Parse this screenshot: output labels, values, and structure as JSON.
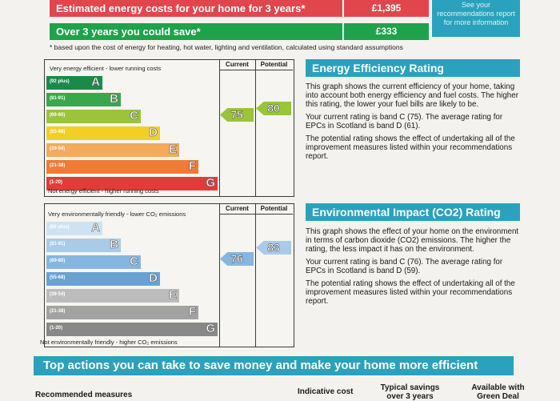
{
  "costs": {
    "row1_label": "Estimated energy costs for your home for 3 years*",
    "row1_value": "£1,395",
    "row2_label": "Over 3 years you could save*",
    "row2_value": "£333",
    "side_note": "See your recommendations report for more information",
    "footnote": "* based upon the cost of energy for heating, hot water, lighting and ventilation, calculated using standard assumptions"
  },
  "energy": {
    "top_label": "Very energy efficient - lower running costs",
    "bottom_label": "Not energy efficient - higher running costs",
    "col_current": "Current",
    "col_potential": "Potential",
    "current": "75",
    "potential": "80",
    "bands": [
      {
        "range": "(92 plus)",
        "letter": "A",
        "color": "#1a8a4a"
      },
      {
        "range": "(81-91)",
        "letter": "B",
        "color": "#3aa84a"
      },
      {
        "range": "(69-80)",
        "letter": "C",
        "color": "#9ac43a"
      },
      {
        "range": "(55-68)",
        "letter": "D",
        "color": "#f2cf22"
      },
      {
        "range": "(39-54)",
        "letter": "E",
        "color": "#f3aa5a"
      },
      {
        "range": "(21-38)",
        "letter": "F",
        "color": "#ee7b36"
      },
      {
        "range": "(1-20)",
        "letter": "G",
        "color": "#e23b3b"
      }
    ]
  },
  "environment": {
    "top_label": "Very environmentally friendly - lower CO₂ emissions",
    "bottom_label": "Not environmentally friendly - higher CO₂ emissions",
    "col_current": "Current",
    "col_potential": "Potential",
    "current": "76",
    "potential": "83",
    "bands": [
      {
        "range": "(92 plus)",
        "letter": "A",
        "color": "#cfe2f2"
      },
      {
        "range": "(81-91)",
        "letter": "B",
        "color": "#a9cbe8"
      },
      {
        "range": "(69-80)",
        "letter": "C",
        "color": "#86b6e0"
      },
      {
        "range": "(55-68)",
        "letter": "D",
        "color": "#6aa1d4"
      },
      {
        "range": "(39-54)",
        "letter": "E",
        "color": "#bcbcbc"
      },
      {
        "range": "(21-38)",
        "letter": "F",
        "color": "#a2a2a2"
      },
      {
        "range": "(1-20)",
        "letter": "G",
        "color": "#888888"
      }
    ]
  },
  "eer_panel": {
    "title": "Energy Efficiency Rating",
    "p1": "This graph shows the current efficiency of your home, taking into account both energy efficiency and fuel costs. The higher this rating, the lower your fuel bills are likely to be.",
    "p2": "Your current rating is band C (75). The average rating for EPCs in Scotland is band D (61).",
    "p3": "The potential rating shows the effect of undertaking all of the improvement measures listed within your recommendations report."
  },
  "eir_panel": {
    "title": "Environmental Impact (CO2) Rating",
    "p1": "This graph shows the effect of your home on the environment in terms of carbon dioxide (CO2) emissions. The higher the rating, the less impact it has on the environment.",
    "p2": "Your current rating is band C (76). The average rating for EPCs in Scotland is band D (59).",
    "p3": "The potential rating shows the effect of undertaking all of the improvement measures listed within your recommendations report."
  },
  "actions": {
    "title": "Top actions you can take to save money and make your home more efficient",
    "col_measures": "Recommended measures",
    "col_cost": "Indicative cost",
    "col_savings": "Typical savings over 3 years",
    "col_green": "Available with Green Deal"
  }
}
